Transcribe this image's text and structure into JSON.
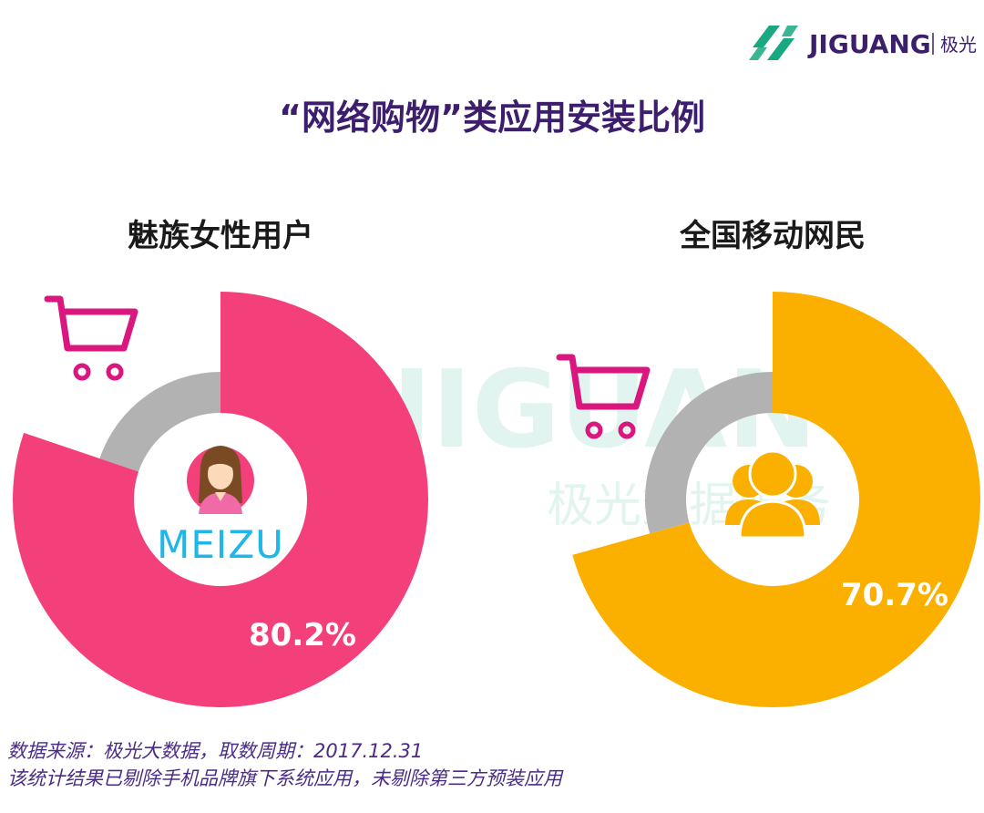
{
  "brand": {
    "name": "JIGUANG",
    "cn_name": "极光",
    "color": "#1aa882",
    "watermark_text": "JIGUANG",
    "watermark_cn": "极光数据服务"
  },
  "title": "“网络购物”类应用安装比例",
  "title_color": "#3d1e6d",
  "source_note": "数据来源：极光大数据，取数周期：2017.12.31",
  "disclaimer": "该统计结果已剔除手机品牌旗下系统应用，未剔除第三方预装应用",
  "cart_color": "#d9177e",
  "chart_data": [
    {
      "type": "pie",
      "title": "魅族女性用户",
      "value_label": "80.2%",
      "value": 80.2,
      "color": "#f4407a",
      "remainder_color": "#b2b2b2",
      "center_icon": "woman-avatar-icon",
      "center_logo": "MEIZU",
      "logo_color": "#1fb6e8"
    },
    {
      "type": "pie",
      "title": "全国移动网民",
      "value_label": "70.7%",
      "value": 70.7,
      "color": "#fbb000",
      "remainder_color": "#b2b2b2",
      "center_icon": "user-group-icon"
    }
  ]
}
